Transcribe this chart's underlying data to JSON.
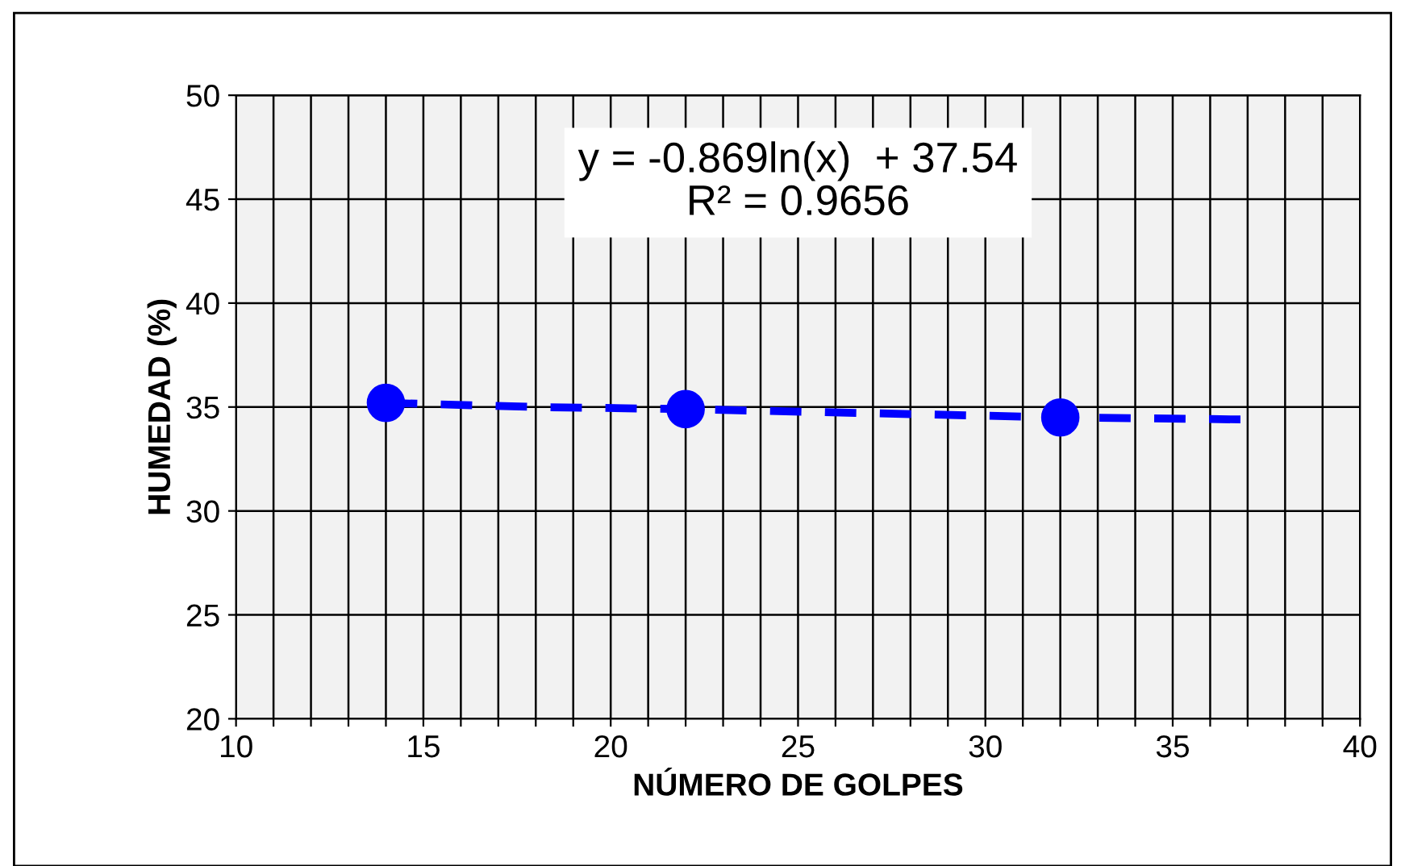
{
  "chart_data": {
    "type": "scatter",
    "xlabel": "NÚMERO DE GOLPES",
    "ylabel": "HUMEDAD (%)",
    "series": [
      {
        "color": "#0000ff",
        "marker": "circle",
        "x": [
          14,
          22,
          32
        ],
        "values": [
          35.2,
          34.9,
          34.5
        ]
      },
      {
        "type": "line",
        "color": "#0000ff",
        "line_style": "dashed",
        "marker": "none",
        "x": [
          14,
          18,
          22,
          27,
          32,
          37
        ],
        "values": [
          35.2,
          35.0,
          34.9,
          34.7,
          34.5,
          34.4
        ]
      }
    ],
    "annotations": [
      "y = -0.869ln(x)  + 37.54\nR² = 0.9656"
    ],
    "xlim": [
      10,
      40
    ],
    "ylim": [
      20,
      50
    ],
    "xticks": [
      10,
      {
        "value": 11,
        "label": null
      },
      {
        "value": 12,
        "label": null
      },
      {
        "value": 13,
        "label": null
      },
      {
        "value": 14,
        "label": null
      },
      15,
      {
        "value": 16,
        "label": null
      },
      {
        "value": 17,
        "label": null
      },
      {
        "value": 18,
        "label": null
      },
      {
        "value": 19,
        "label": null
      },
      20,
      {
        "value": 21,
        "label": null
      },
      {
        "value": 22,
        "label": null
      },
      {
        "value": 23,
        "label": null
      },
      {
        "value": 24,
        "label": null
      },
      25,
      {
        "value": 26,
        "label": null
      },
      {
        "value": 27,
        "label": null
      },
      {
        "value": 28,
        "label": null
      },
      {
        "value": 29,
        "label": null
      },
      30,
      {
        "value": 31,
        "label": null
      },
      {
        "value": 32,
        "label": null
      },
      {
        "value": 33,
        "label": null
      },
      {
        "value": 34,
        "label": null
      },
      35,
      {
        "value": 36,
        "label": null
      },
      {
        "value": 37,
        "label": null
      },
      {
        "value": 38,
        "label": null
      },
      {
        "value": 39,
        "label": null
      },
      40
    ],
    "yticks": [
      20,
      25,
      30,
      35,
      40,
      45,
      50
    ],
    "grid": true,
    "legend": false
  }
}
